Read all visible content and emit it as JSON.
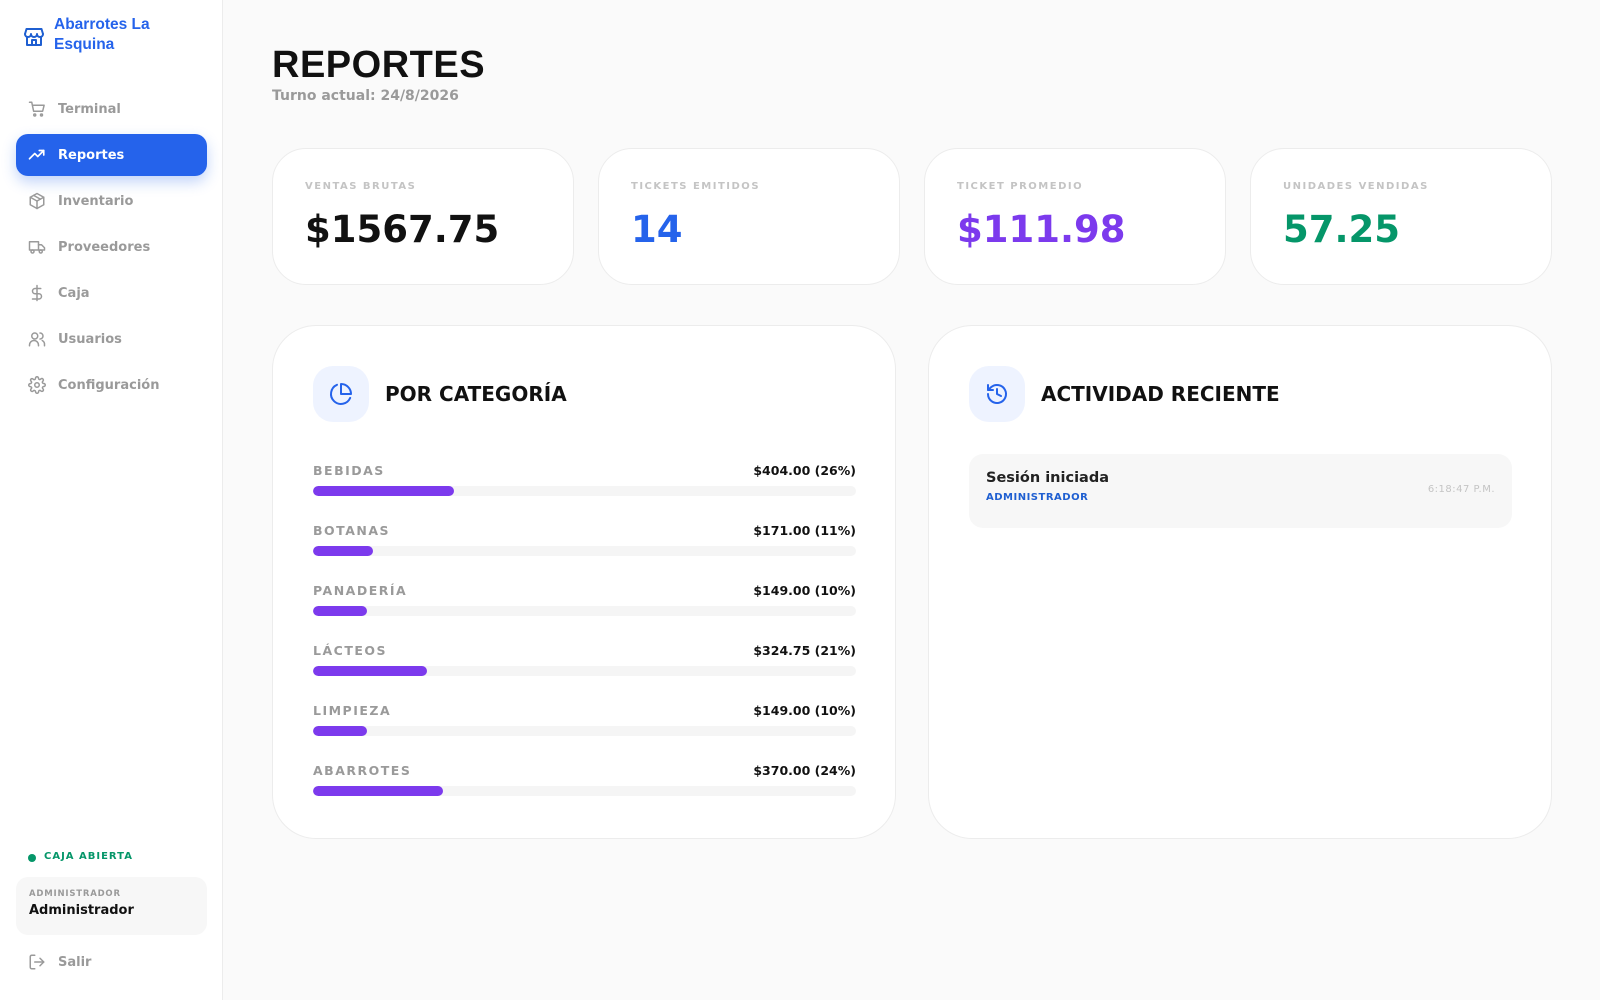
{
  "brand": {
    "name": "Abarrotes La Esquina",
    "accent": "#2563eb"
  },
  "nav": [
    {
      "label": "Terminal",
      "icon": "cart-icon",
      "active": false
    },
    {
      "label": "Reportes",
      "icon": "trending-up-icon",
      "active": true
    },
    {
      "label": "Inventario",
      "icon": "package-icon",
      "active": false
    },
    {
      "label": "Proveedores",
      "icon": "truck-icon",
      "active": false
    },
    {
      "label": "Caja",
      "icon": "dollar-icon",
      "active": false
    },
    {
      "label": "Usuarios",
      "icon": "users-icon",
      "active": false
    },
    {
      "label": "Configuración",
      "icon": "gear-icon",
      "active": false
    }
  ],
  "caja": {
    "status": "CAJA ABIERTA",
    "color": "#059669"
  },
  "user": {
    "role": "ADMINISTRADOR",
    "name": "Administrador"
  },
  "logout": {
    "label": "Salir"
  },
  "header": {
    "title": "REPORTES",
    "subtitle": "Turno actual: 24/8/2026"
  },
  "stats": [
    {
      "key": "VENTAS BRUTAS",
      "value": "$1567.75",
      "color": "#111111"
    },
    {
      "key": "TICKETS EMITIDOS",
      "value": "14",
      "color": "#2563eb"
    },
    {
      "key": "TICKET PROMEDIO",
      "value": "$111.98",
      "color": "#7c3aed"
    },
    {
      "key": "UNIDADES VENDIDAS",
      "value": "57.25",
      "color": "#059669"
    }
  ],
  "categories": {
    "title": "POR CATEGORÍA",
    "bar_color": "#7c3aed",
    "items": [
      {
        "name": "BEBIDAS",
        "value": "$404.00 (26%)",
        "percent": 26
      },
      {
        "name": "BOTANAS",
        "value": "$171.00 (11%)",
        "percent": 11
      },
      {
        "name": "PANADERÍA",
        "value": "$149.00 (10%)",
        "percent": 10
      },
      {
        "name": "LÁCTEOS",
        "value": "$324.75 (21%)",
        "percent": 21
      },
      {
        "name": "LIMPIEZA",
        "value": "$149.00 (10%)",
        "percent": 10
      },
      {
        "name": "ABARROTES",
        "value": "$370.00 (24%)",
        "percent": 24
      }
    ]
  },
  "activity": {
    "title": "ACTIVIDAD RECIENTE",
    "items": [
      {
        "title": "Sesión iniciada",
        "user": "ADMINISTRADOR",
        "time": "6:18:47 P.M."
      }
    ]
  }
}
